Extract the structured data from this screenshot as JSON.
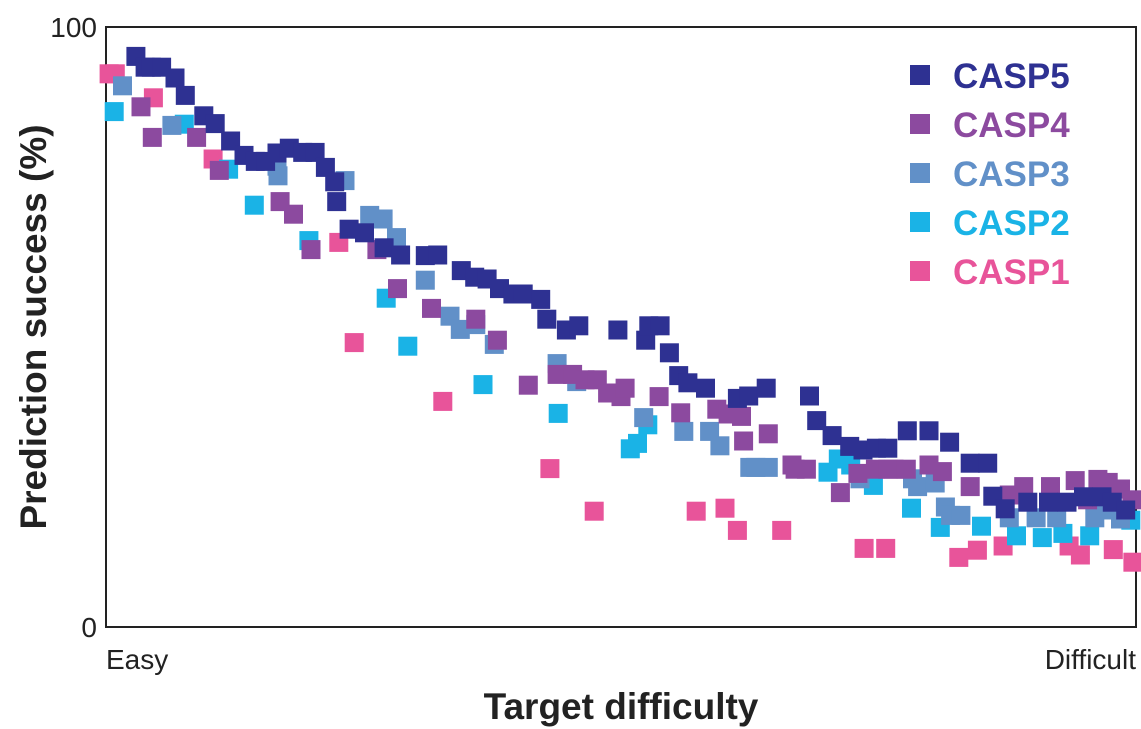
{
  "chart_data": {
    "type": "scatter",
    "title": "",
    "xlabel": "Target difficulty",
    "ylabel": "Prediction success (%)",
    "x_tick_labels": [
      "Easy",
      "Difficult"
    ],
    "y_tick_labels": [
      "0",
      "100"
    ],
    "xlim": [
      0,
      1
    ],
    "ylim": [
      0,
      100
    ],
    "grid": false,
    "legend_position": "top-right",
    "marker": "square",
    "series": [
      {
        "name": "CASP5",
        "color": "#2e3192",
        "points": [
          [
            0.029,
            95.1
          ],
          [
            0.038,
            93.3
          ],
          [
            0.044,
            93.3
          ],
          [
            0.054,
            93.3
          ],
          [
            0.067,
            91.5
          ],
          [
            0.077,
            88.6
          ],
          [
            0.095,
            85.2
          ],
          [
            0.106,
            83.9
          ],
          [
            0.121,
            81.0
          ],
          [
            0.134,
            78.6
          ],
          [
            0.145,
            77.6
          ],
          [
            0.155,
            77.6
          ],
          [
            0.166,
            79.0
          ],
          [
            0.178,
            79.8
          ],
          [
            0.191,
            79.1
          ],
          [
            0.203,
            79.1
          ],
          [
            0.213,
            76.6
          ],
          [
            0.222,
            74.2
          ],
          [
            0.224,
            70.9
          ],
          [
            0.236,
            66.3
          ],
          [
            0.251,
            65.7
          ],
          [
            0.27,
            63.2
          ],
          [
            0.286,
            62.0
          ],
          [
            0.31,
            61.9
          ],
          [
            0.322,
            62.0
          ],
          [
            0.345,
            59.4
          ],
          [
            0.358,
            58.3
          ],
          [
            0.37,
            58.0
          ],
          [
            0.382,
            56.4
          ],
          [
            0.395,
            55.5
          ],
          [
            0.405,
            55.5
          ],
          [
            0.422,
            54.6
          ],
          [
            0.428,
            51.3
          ],
          [
            0.447,
            49.5
          ],
          [
            0.459,
            50.2
          ],
          [
            0.497,
            49.5
          ],
          [
            0.524,
            47.8
          ],
          [
            0.527,
            50.2
          ],
          [
            0.538,
            50.2
          ],
          [
            0.547,
            45.7
          ],
          [
            0.556,
            41.9
          ],
          [
            0.565,
            40.7
          ],
          [
            0.582,
            39.8
          ],
          [
            0.613,
            38.1
          ],
          [
            0.624,
            38.5
          ],
          [
            0.641,
            39.8
          ],
          [
            0.683,
            38.5
          ],
          [
            0.69,
            34.4
          ],
          [
            0.705,
            31.9
          ],
          [
            0.722,
            30.1
          ],
          [
            0.735,
            29.5
          ],
          [
            0.748,
            29.8
          ],
          [
            0.759,
            29.8
          ],
          [
            0.778,
            32.7
          ],
          [
            0.799,
            32.7
          ],
          [
            0.819,
            30.8
          ],
          [
            0.839,
            27.3
          ],
          [
            0.856,
            27.3
          ],
          [
            0.861,
            21.8
          ],
          [
            0.873,
            19.7
          ],
          [
            0.895,
            20.8
          ],
          [
            0.915,
            20.8
          ],
          [
            0.933,
            20.8
          ],
          [
            0.949,
            21.7
          ],
          [
            0.967,
            21.7
          ],
          [
            0.977,
            20.8
          ],
          [
            0.99,
            19.5
          ]
        ]
      },
      {
        "name": "CASP4",
        "color": "#8c4a9f",
        "points": [
          [
            0.034,
            86.7
          ],
          [
            0.045,
            81.6
          ],
          [
            0.088,
            81.6
          ],
          [
            0.11,
            76.1
          ],
          [
            0.169,
            70.9
          ],
          [
            0.182,
            68.8
          ],
          [
            0.199,
            62.9
          ],
          [
            0.263,
            62.9
          ],
          [
            0.283,
            56.4
          ],
          [
            0.316,
            53.1
          ],
          [
            0.359,
            51.3
          ],
          [
            0.38,
            47.8
          ],
          [
            0.41,
            40.3
          ],
          [
            0.438,
            42.1
          ],
          [
            0.453,
            42.1
          ],
          [
            0.465,
            41.2
          ],
          [
            0.477,
            41.2
          ],
          [
            0.487,
            39.0
          ],
          [
            0.5,
            38.4
          ],
          [
            0.504,
            39.8
          ],
          [
            0.537,
            38.4
          ],
          [
            0.558,
            35.7
          ],
          [
            0.593,
            36.3
          ],
          [
            0.604,
            35.5
          ],
          [
            0.617,
            35.1
          ],
          [
            0.619,
            31.0
          ],
          [
            0.643,
            32.2
          ],
          [
            0.666,
            27.0
          ],
          [
            0.669,
            26.3
          ],
          [
            0.68,
            26.3
          ],
          [
            0.713,
            22.4
          ],
          [
            0.73,
            25.6
          ],
          [
            0.747,
            26.3
          ],
          [
            0.759,
            26.3
          ],
          [
            0.765,
            26.3
          ],
          [
            0.777,
            26.3
          ],
          [
            0.799,
            27.0
          ],
          [
            0.812,
            25.9
          ],
          [
            0.839,
            23.4
          ],
          [
            0.877,
            22.0
          ],
          [
            0.891,
            23.4
          ],
          [
            0.917,
            23.4
          ],
          [
            0.941,
            24.4
          ],
          [
            0.953,
            21.2
          ],
          [
            0.963,
            24.6
          ],
          [
            0.973,
            24.1
          ],
          [
            0.985,
            23.0
          ],
          [
            0.996,
            21.2
          ]
        ]
      },
      {
        "name": "CASP3",
        "color": "#6190c8",
        "points": [
          [
            0.016,
            90.2
          ],
          [
            0.064,
            83.6
          ],
          [
            0.166,
            76.8
          ],
          [
            0.167,
            75.2
          ],
          [
            0.232,
            74.4
          ],
          [
            0.256,
            68.6
          ],
          [
            0.269,
            68.0
          ],
          [
            0.282,
            64.9
          ],
          [
            0.31,
            57.8
          ],
          [
            0.334,
            51.8
          ],
          [
            0.344,
            49.6
          ],
          [
            0.359,
            50.4
          ],
          [
            0.377,
            47.1
          ],
          [
            0.438,
            43.9
          ],
          [
            0.457,
            40.9
          ],
          [
            0.522,
            34.9
          ],
          [
            0.561,
            32.6
          ],
          [
            0.586,
            32.6
          ],
          [
            0.596,
            30.2
          ],
          [
            0.625,
            26.6
          ],
          [
            0.631,
            26.6
          ],
          [
            0.643,
            26.6
          ],
          [
            0.732,
            24.7
          ],
          [
            0.783,
            24.7
          ],
          [
            0.788,
            23.4
          ],
          [
            0.805,
            24.0
          ],
          [
            0.815,
            20.0
          ],
          [
            0.82,
            18.6
          ],
          [
            0.83,
            18.6
          ],
          [
            0.877,
            18.2
          ],
          [
            0.903,
            18.2
          ],
          [
            0.923,
            18.2
          ],
          [
            0.96,
            18.2
          ],
          [
            0.971,
            19.5
          ],
          [
            0.985,
            18.0
          ]
        ]
      },
      {
        "name": "CASP2",
        "color": "#1ab3e6",
        "points": [
          [
            0.008,
            85.9
          ],
          [
            0.076,
            83.8
          ],
          [
            0.119,
            76.3
          ],
          [
            0.144,
            70.3
          ],
          [
            0.197,
            64.4
          ],
          [
            0.272,
            54.8
          ],
          [
            0.293,
            46.8
          ],
          [
            0.366,
            40.4
          ],
          [
            0.439,
            35.6
          ],
          [
            0.509,
            29.7
          ],
          [
            0.516,
            30.6
          ],
          [
            0.526,
            33.7
          ],
          [
            0.701,
            25.8
          ],
          [
            0.711,
            28.0
          ],
          [
            0.723,
            27.0
          ],
          [
            0.745,
            23.6
          ],
          [
            0.782,
            19.8
          ],
          [
            0.81,
            16.6
          ],
          [
            0.85,
            16.8
          ],
          [
            0.884,
            15.2
          ],
          [
            0.909,
            14.9
          ],
          [
            0.929,
            15.6
          ],
          [
            0.955,
            15.2
          ],
          [
            0.995,
            17.8
          ]
        ]
      },
      {
        "name": "CASP1",
        "color": "#e8549a",
        "points": [
          [
            0.003,
            92.2
          ],
          [
            0.009,
            92.2
          ],
          [
            0.046,
            88.2
          ],
          [
            0.104,
            78.0
          ],
          [
            0.226,
            64.1
          ],
          [
            0.241,
            47.4
          ],
          [
            0.327,
            37.6
          ],
          [
            0.431,
            26.4
          ],
          [
            0.474,
            19.3
          ],
          [
            0.573,
            19.3
          ],
          [
            0.601,
            19.8
          ],
          [
            0.613,
            16.1
          ],
          [
            0.656,
            16.1
          ],
          [
            0.736,
            13.1
          ],
          [
            0.757,
            13.1
          ],
          [
            0.828,
            11.6
          ],
          [
            0.846,
            12.8
          ],
          [
            0.871,
            13.5
          ],
          [
            0.935,
            13.5
          ],
          [
            0.946,
            12.0
          ],
          [
            0.978,
            12.9
          ],
          [
            0.997,
            10.8
          ]
        ]
      }
    ]
  }
}
